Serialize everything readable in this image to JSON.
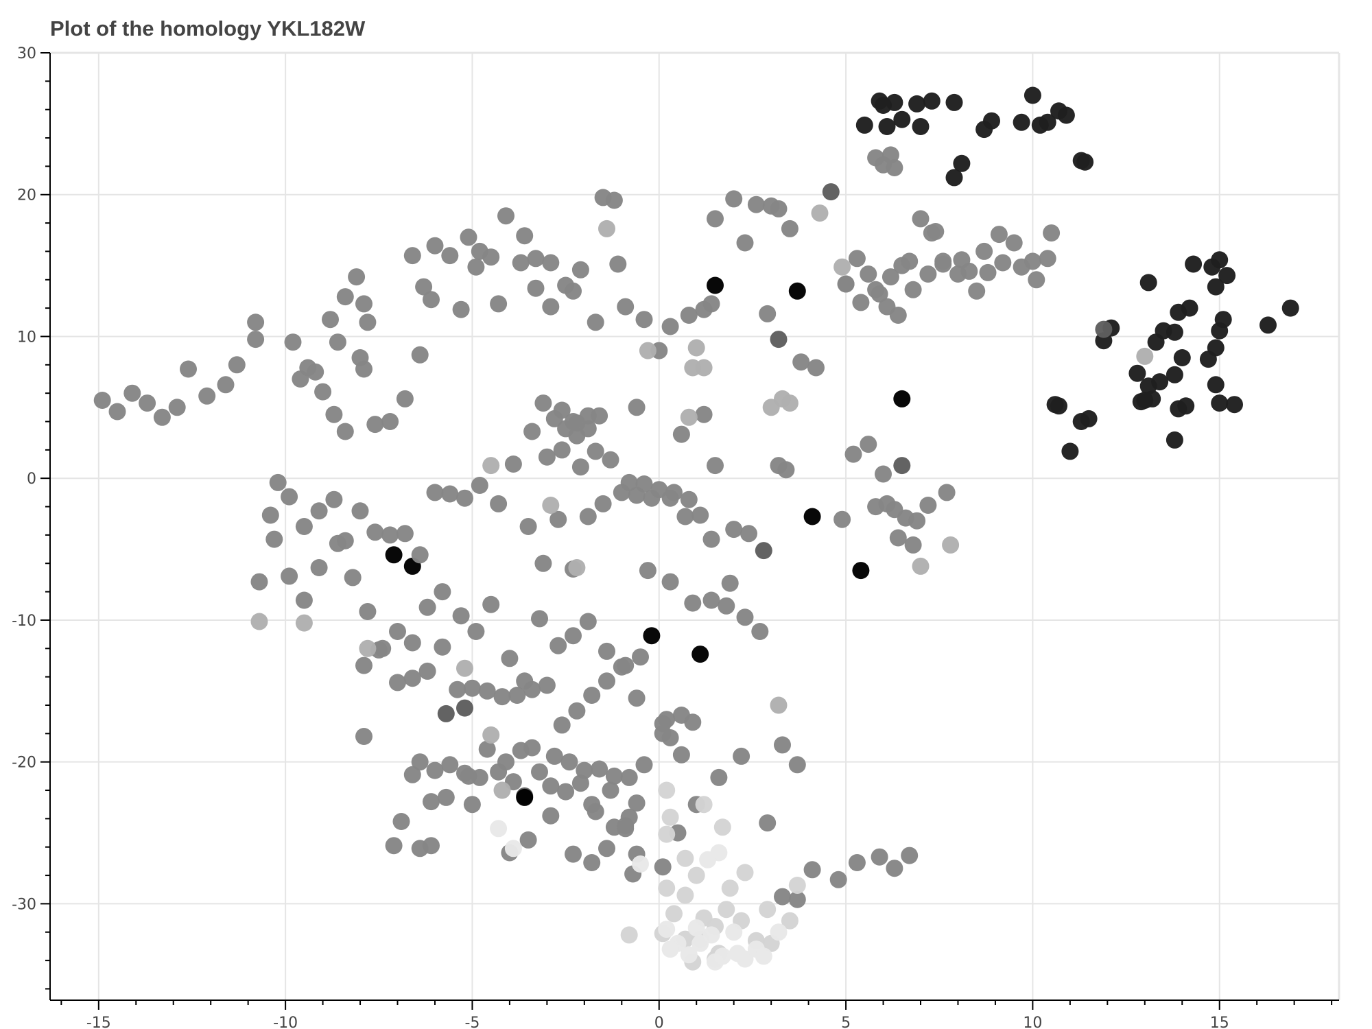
{
  "chart_data": {
    "type": "scatter",
    "title": "Plot of the homology YKL182W",
    "xlabel": "",
    "ylabel": "",
    "xlim": [
      -16.3,
      18.2
    ],
    "ylim": [
      -36.8,
      30
    ],
    "grid": true,
    "x_ticks": [
      -15,
      -10,
      -5,
      0,
      5,
      10,
      15
    ],
    "y_ticks": [
      30,
      20,
      10,
      0,
      -10,
      -20,
      -30
    ],
    "x_tick_labels": [
      "-15",
      "-10",
      "-5",
      "0",
      "5",
      "10",
      "15"
    ],
    "y_tick_labels": [
      "30",
      "20",
      "10",
      "0",
      "-10",
      "-20",
      "-30"
    ],
    "point_shades": {
      "A": "#1f1f1f",
      "B": "#868686",
      "C": "#b0b0b0",
      "D": "#d4d4d4",
      "E": "#e8e8e8",
      "F": "#5e5e5e",
      "G": "#000000"
    },
    "series": [
      {
        "shade": "A",
        "x": [
          5.5,
          5.9,
          6.3,
          6.1,
          6.5,
          6.9,
          7.3,
          7.0,
          7.9,
          8.7,
          8.9,
          9.7,
          10.0,
          10.2,
          10.4,
          10.7,
          10.9,
          11.4,
          7.9,
          8.1,
          11.3,
          6.0,
          13.1,
          14.3,
          14.8,
          15.0,
          15.2,
          14.9,
          13.9,
          14.2,
          13.8,
          13.5,
          13.3,
          12.1,
          11.9,
          12.8,
          13.1,
          13.4,
          13.0,
          13.8,
          14.0,
          14.1,
          13.9,
          14.7,
          14.9,
          15.0,
          15.1,
          15.0,
          14.9,
          15.4,
          16.3,
          16.9,
          10.6,
          10.7,
          11.3,
          11.5,
          11.0,
          13.8,
          12.9,
          13.2
        ],
        "y": [
          24.9,
          26.6,
          26.5,
          24.8,
          25.3,
          26.4,
          26.6,
          24.8,
          26.5,
          24.6,
          25.2,
          25.1,
          27.0,
          24.9,
          25.1,
          25.9,
          25.6,
          22.3,
          21.2,
          22.2,
          22.4,
          26.3,
          13.8,
          15.1,
          14.9,
          15.4,
          14.3,
          13.5,
          11.7,
          12.0,
          10.3,
          10.4,
          9.6,
          10.6,
          9.7,
          7.4,
          6.5,
          6.8,
          5.5,
          7.3,
          8.5,
          5.1,
          4.9,
          8.4,
          9.2,
          10.4,
          11.2,
          5.3,
          6.6,
          5.2,
          10.8,
          12.0,
          5.2,
          5.1,
          4.0,
          4.2,
          1.9,
          2.7,
          5.4,
          5.6
        ]
      },
      {
        "shade": "F",
        "x": [
          4.6,
          6.5,
          2.8,
          -3.6,
          -5.2,
          -5.7,
          3.2,
          11.9
        ],
        "y": [
          20.2,
          0.9,
          -5.1,
          -22.4,
          -16.2,
          -16.6,
          9.8,
          10.5
        ]
      },
      {
        "shade": "G",
        "x": [
          1.1,
          -0.2,
          -7.1,
          -6.6,
          -3.6,
          1.5,
          3.7,
          4.1,
          5.4,
          6.5
        ],
        "y": [
          -12.4,
          -11.1,
          -5.4,
          -6.2,
          -22.5,
          13.6,
          13.2,
          -2.7,
          -6.5,
          5.6
        ]
      },
      {
        "shade": "B",
        "x": [
          -14.9,
          -14.5,
          -14.1,
          -13.7,
          -13.3,
          -12.9,
          -12.6,
          -12.1,
          -11.6,
          -11.3,
          -10.8,
          -10.8,
          -9.8,
          -9.4,
          -9.0,
          -8.7,
          -8.4,
          -8.0,
          -7.9,
          -7.6,
          -7.2,
          -6.8,
          -6.4,
          -6.0,
          -5.6,
          -5.1,
          -4.8,
          -4.5,
          -4.1,
          -3.6,
          -3.3,
          -2.9,
          -2.5,
          -2.1,
          -1.5,
          -1.1,
          -9.6,
          -9.2,
          -8.8,
          -8.6,
          -8.4,
          -8.1,
          -7.8,
          -7.9,
          -6.6,
          -6.3,
          -6.1,
          -5.3,
          -4.9,
          -4.3,
          -3.7,
          -3.3,
          -2.9,
          -2.3,
          -1.7,
          -1.2,
          -0.9,
          -0.4,
          0.0,
          -0.6,
          0.6,
          1.2,
          1.5,
          -10.4,
          -10.2,
          -9.9,
          -9.5,
          -9.1,
          -8.7,
          -8.4,
          -8.0,
          -7.6,
          -7.2,
          -6.8,
          -6.4,
          -6.0,
          -5.6,
          -5.2,
          -4.8,
          -4.3,
          -3.9,
          -3.5,
          -3.1,
          -2.7,
          -2.3,
          -1.9,
          -1.5,
          -1.0,
          -0.6,
          -0.2,
          0.3,
          0.7,
          1.1,
          1.4,
          1.9,
          -10.7,
          -10.3,
          -9.9,
          -9.5,
          -9.1,
          -8.6,
          -8.2,
          -7.8,
          -7.4,
          -7.0,
          -6.6,
          -6.2,
          -5.8,
          -5.3,
          -4.9,
          -4.5,
          -4.0,
          -3.6,
          -3.2,
          -2.7,
          -2.3,
          -1.9,
          -1.4,
          -1.0,
          -0.6,
          -7.9,
          -7.5,
          -7.0,
          -6.6,
          -6.2,
          -5.8,
          -5.4,
          -5.0,
          -4.6,
          -4.2,
          -3.8,
          -3.4,
          -3.0,
          -2.6,
          -2.2,
          -1.8,
          -1.4,
          -0.9,
          -0.5,
          0.2,
          0.6,
          0.9,
          -7.9,
          -6.9,
          -6.4,
          -6.0,
          -5.6,
          -5.1,
          -4.6,
          -4.1,
          -3.7,
          -3.2,
          -2.8,
          -2.4,
          -2.0,
          -1.6,
          -1.2,
          -0.8,
          -0.4,
          0.1,
          0.6,
          -6.4,
          -6.1,
          -5.7,
          -5.2,
          -4.8,
          -4.3,
          -3.9,
          -3.4,
          -2.9,
          -2.5,
          -2.1,
          -1.7,
          -1.3,
          -0.9,
          -0.6,
          0.1,
          0.3,
          -7.1,
          -6.6,
          -6.1,
          -5.0,
          -4.0,
          -3.5,
          -2.9,
          -2.3,
          -1.8,
          -1.4,
          -0.9,
          -0.7,
          -0.8,
          -3.1,
          -2.8,
          -2.5,
          -2.2,
          -1.9,
          -1.6,
          -2.6,
          -2.3,
          -1.9,
          -2.2,
          1.5,
          2.0,
          2.3,
          2.6,
          3.0,
          3.2,
          3.5,
          3.8,
          4.2,
          5.0,
          5.3,
          5.6,
          5.9,
          6.2,
          6.5,
          6.8,
          7.3,
          7.6,
          8.0,
          8.3,
          8.7,
          9.1,
          9.5,
          10.0,
          10.4,
          5.0,
          5.4,
          5.8,
          6.1,
          6.4,
          6.7,
          7.2,
          7.6,
          8.1,
          8.5,
          8.8,
          9.2,
          9.7,
          10.1,
          10.5,
          6.0,
          6.3,
          5.8,
          6.2,
          5.2,
          5.6,
          6.0,
          6.3,
          6.6,
          6.9,
          7.2,
          7.7,
          5.8,
          6.1,
          6.4,
          6.8,
          3.2,
          3.4,
          2.4,
          2.0,
          4.9,
          -1.8,
          -1.2,
          -0.6,
          0.1,
          0.5,
          1.0,
          1.6,
          2.2,
          2.9,
          3.3,
          3.7,
          4.1,
          4.8,
          5.3,
          5.9,
          6.3,
          6.7,
          -0.3,
          0.3,
          0.9,
          1.4,
          1.8,
          2.3,
          2.7,
          -3.4,
          -3.0,
          -2.6,
          -2.1,
          -1.7,
          -1.3,
          -0.8,
          -0.4,
          0.0,
          0.4,
          0.8,
          3.3,
          3.7,
          7.0,
          7.4,
          0.3,
          0.8,
          1.2,
          1.4,
          2.9
        ],
        "y": [
          5.5,
          4.7,
          6.0,
          5.3,
          4.3,
          5.0,
          7.7,
          5.8,
          6.6,
          8.0,
          11.0,
          9.8,
          9.6,
          7.8,
          6.1,
          4.5,
          3.3,
          8.5,
          7.7,
          3.8,
          4.0,
          5.6,
          8.7,
          16.4,
          15.7,
          17.0,
          16.0,
          15.6,
          18.5,
          17.1,
          15.5,
          15.2,
          13.6,
          14.7,
          19.8,
          15.1,
          7.0,
          7.5,
          11.2,
          9.6,
          12.8,
          14.2,
          11.0,
          12.3,
          15.7,
          13.5,
          12.6,
          11.9,
          14.9,
          12.3,
          15.2,
          13.4,
          12.1,
          13.2,
          11.0,
          19.6,
          12.1,
          11.2,
          9.0,
          5.0,
          3.1,
          4.5,
          0.9,
          -2.6,
          -0.3,
          -1.3,
          -3.4,
          -2.3,
          -1.5,
          -4.4,
          -2.3,
          -3.8,
          -4.0,
          -3.9,
          -5.4,
          -1.0,
          -1.1,
          -1.4,
          -0.5,
          -1.8,
          1.0,
          -3.4,
          -6.0,
          -2.9,
          -6.4,
          -2.7,
          -1.8,
          -1.0,
          -1.2,
          -1.4,
          -1.4,
          -2.7,
          -2.6,
          -4.3,
          -7.4,
          -7.3,
          -4.3,
          -6.9,
          -8.6,
          -6.3,
          -4.6,
          -7.0,
          -9.4,
          -12.0,
          -10.8,
          -11.6,
          -9.1,
          -8.0,
          -9.7,
          -10.8,
          -8.9,
          -12.7,
          -14.3,
          -9.9,
          -11.8,
          -11.1,
          -10.1,
          -12.2,
          -13.3,
          -15.5,
          -13.2,
          -12.1,
          -14.4,
          -14.1,
          -13.6,
          -11.9,
          -14.9,
          -14.8,
          -15.0,
          -15.4,
          -15.3,
          -14.9,
          -14.6,
          -17.4,
          -16.4,
          -15.3,
          -14.3,
          -13.2,
          -12.6,
          -17.0,
          -16.7,
          -17.2,
          -18.2,
          -24.2,
          -26.1,
          -20.6,
          -20.2,
          -21.0,
          -19.1,
          -20.0,
          -19.2,
          -20.7,
          -19.6,
          -20.0,
          -20.6,
          -20.5,
          -21.0,
          -21.1,
          -20.2,
          -17.3,
          -19.5,
          -20.0,
          -22.8,
          -22.5,
          -20.8,
          -21.1,
          -20.7,
          -21.4,
          -19.0,
          -21.7,
          -22.1,
          -21.5,
          -23.5,
          -22.0,
          -24.5,
          -22.9,
          -18.0,
          -18.3,
          -25.9,
          -20.9,
          -25.9,
          -23.0,
          -26.4,
          -25.5,
          -23.8,
          -26.5,
          -27.1,
          -26.1,
          -24.7,
          -27.9,
          -23.9,
          5.3,
          4.2,
          3.5,
          3.0,
          3.5,
          4.4,
          4.8,
          4.0,
          4.4,
          3.9,
          18.3,
          19.7,
          16.6,
          19.3,
          19.2,
          19.0,
          17.6,
          8.2,
          7.8,
          13.7,
          15.5,
          14.4,
          13.0,
          14.2,
          15.0,
          13.3,
          17.3,
          15.3,
          14.4,
          14.6,
          16.0,
          17.2,
          16.6,
          15.3,
          15.5,
          13.7,
          12.4,
          13.3,
          12.1,
          11.5,
          15.3,
          14.4,
          15.1,
          15.4,
          13.2,
          14.5,
          15.2,
          14.9,
          14.0,
          17.3,
          22.1,
          21.9,
          22.6,
          22.8,
          1.7,
          2.4,
          0.3,
          -2.2,
          -2.8,
          -3.0,
          -1.9,
          -1.0,
          -2.0,
          -1.8,
          -4.2,
          -4.7,
          0.9,
          0.6,
          -3.9,
          -3.6,
          -2.9,
          -23.0,
          -24.6,
          -26.5,
          -27.4,
          -25.0,
          -23.0,
          -21.1,
          -19.6,
          -24.3,
          -18.8,
          -20.2,
          -27.6,
          -28.3,
          -27.1,
          -26.7,
          -27.5,
          -26.6,
          -6.5,
          -7.3,
          -8.8,
          -8.6,
          -9.0,
          -9.8,
          -10.8,
          3.3,
          1.5,
          2.0,
          0.8,
          1.9,
          1.3,
          -0.3,
          -0.4,
          -0.8,
          -1.0,
          -1.5,
          -29.5,
          -29.7,
          18.3,
          17.4,
          10.7,
          11.5,
          11.9,
          12.3,
          11.6
        ]
      },
      {
        "shade": "C",
        "x": [
          4.3,
          4.9,
          -1.4,
          -0.3,
          1.0,
          0.9,
          1.2,
          0.8,
          3.0,
          3.3,
          3.5,
          -4.5,
          -2.9,
          -2.2,
          -10.7,
          -9.5,
          -7.8,
          -5.2,
          -4.5,
          -4.2,
          3.2,
          7.0,
          7.8,
          13.0
        ],
        "y": [
          18.7,
          14.9,
          17.6,
          9.0,
          9.2,
          7.8,
          7.8,
          4.3,
          5.0,
          5.6,
          5.3,
          0.9,
          -1.9,
          -6.3,
          -10.1,
          -10.2,
          -12.0,
          -13.4,
          -18.1,
          -22.0,
          -16.0,
          -6.2,
          -4.7,
          8.6
        ]
      },
      {
        "shade": "D",
        "x": [
          0.2,
          0.3,
          0.2,
          0.7,
          1.2,
          0.2,
          0.7,
          1.7,
          1.0,
          1.9,
          2.3,
          2.9,
          3.5,
          3.7,
          0.4,
          0.7,
          1.2,
          1.5,
          1.8,
          2.2,
          2.6,
          3.0,
          0.9,
          1.5,
          -0.8,
          0.1,
          1.1,
          1.6
        ],
        "y": [
          -22.0,
          -23.9,
          -25.1,
          -26.8,
          -23.0,
          -28.9,
          -29.4,
          -24.6,
          -28.0,
          -28.9,
          -27.8,
          -30.4,
          -31.2,
          -28.7,
          -30.7,
          -32.5,
          -31.0,
          -31.6,
          -30.4,
          -31.2,
          -32.6,
          -32.8,
          -34.1,
          -33.9,
          -32.2,
          -32.1,
          -32.5,
          -33.5
        ]
      },
      {
        "shade": "E",
        "x": [
          -4.3,
          -3.9,
          -0.5,
          1.6,
          1.3,
          0.2,
          0.5,
          0.8,
          1.1,
          1.4,
          1.7,
          2.0,
          2.3,
          2.6,
          3.2,
          1.0,
          1.5,
          2.1,
          2.8,
          0.3
        ],
        "y": [
          -24.7,
          -26.1,
          -27.2,
          -26.4,
          -26.9,
          -31.8,
          -32.8,
          -33.6,
          -32.8,
          -32.2,
          -33.7,
          -32.0,
          -33.9,
          -33.2,
          -32.0,
          -31.7,
          -34.1,
          -33.5,
          -33.7,
          -33.2
        ]
      }
    ]
  }
}
